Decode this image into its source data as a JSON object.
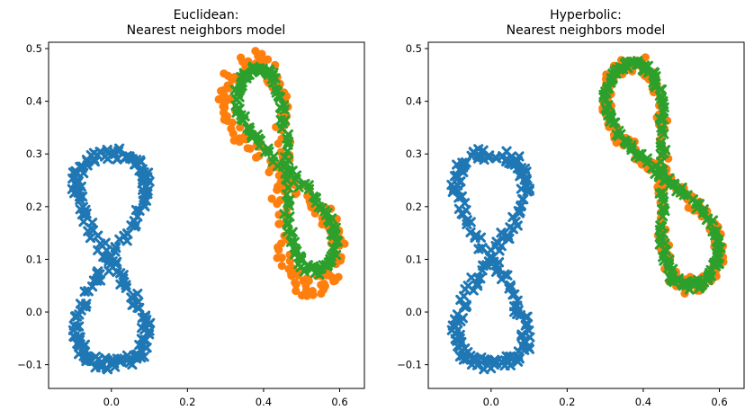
{
  "chart_data": [
    {
      "type": "scatter",
      "title_line1": "Euclidean:",
      "title_line2": "Nearest neighbors model",
      "xlabel": "",
      "ylabel": "",
      "xlim": [
        -0.165,
        0.665
      ],
      "ylim": [
        -0.145,
        0.512
      ],
      "xticks": [
        0.0,
        0.2,
        0.4,
        0.6
      ],
      "yticks": [
        -0.1,
        0.0,
        0.1,
        0.2,
        0.3,
        0.4,
        0.5
      ],
      "xtick_labels": [
        "0.0",
        "0.2",
        "0.4",
        "0.6"
      ],
      "ytick_labels": [
        "−0.1",
        "0.0",
        "0.1",
        "0.2",
        "0.3",
        "0.4",
        "0.5"
      ],
      "grid": false,
      "series": [
        {
          "color": "#1f77b4",
          "marker": "x",
          "shape": "eight",
          "cx": 0.0,
          "cy": 0.1,
          "rx": 0.092,
          "ry": 0.2,
          "jitter": 0.012,
          "count": 220
        },
        {
          "color": "#ff7f0e",
          "marker": "o",
          "shape": "eight",
          "cx": 0.45,
          "cy": 0.26,
          "rx": 0.07,
          "ry": 0.23,
          "rot": 0.5,
          "jitter": 0.02,
          "count": 220
        },
        {
          "color": "#2ca02c",
          "marker": "x",
          "shape": "eight",
          "cx": 0.46,
          "cy": 0.27,
          "rx": 0.055,
          "ry": 0.21,
          "rot": 0.5,
          "jitter": 0.008,
          "count": 170
        }
      ]
    },
    {
      "type": "scatter",
      "title_line1": "Hyperbolic:",
      "title_line2": "Nearest neighbors model",
      "xlabel": "",
      "ylabel": "",
      "xlim": [
        -0.165,
        0.665
      ],
      "ylim": [
        -0.145,
        0.512
      ],
      "xticks": [
        0.0,
        0.2,
        0.4,
        0.6
      ],
      "yticks": [
        -0.1,
        0.0,
        0.1,
        0.2,
        0.3,
        0.4,
        0.5
      ],
      "xtick_labels": [
        "0.0",
        "0.2",
        "0.4",
        "0.6"
      ],
      "ytick_labels": [
        "−0.1",
        "0.0",
        "0.1",
        "0.2",
        "0.3",
        "0.4",
        "0.5"
      ],
      "grid": false,
      "series": [
        {
          "color": "#1f77b4",
          "marker": "x",
          "shape": "eight",
          "cx": 0.0,
          "cy": 0.1,
          "rx": 0.092,
          "ry": 0.2,
          "jitter": 0.012,
          "count": 220
        },
        {
          "color": "#ff7f0e",
          "marker": "o",
          "shape": "eight",
          "cx": 0.45,
          "cy": 0.26,
          "rx": 0.07,
          "ry": 0.23,
          "rot": 0.5,
          "jitter": 0.014,
          "count": 220
        },
        {
          "color": "#2ca02c",
          "marker": "x",
          "shape": "eight",
          "cx": 0.45,
          "cy": 0.26,
          "rx": 0.07,
          "ry": 0.23,
          "rot": 0.5,
          "jitter": 0.008,
          "count": 200
        }
      ]
    }
  ]
}
